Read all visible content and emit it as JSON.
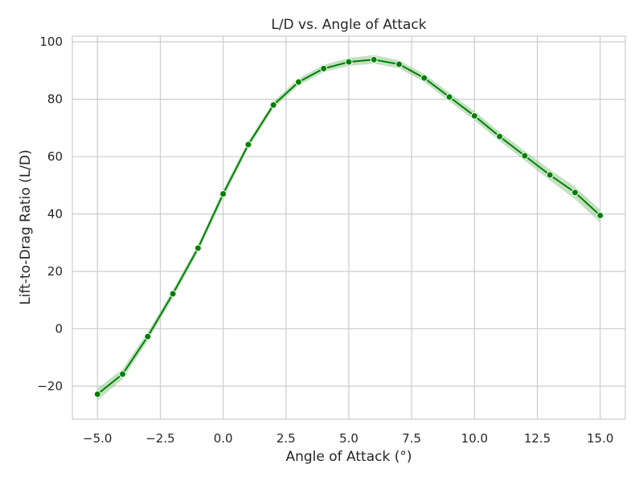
{
  "chart_data": {
    "type": "line",
    "title": "L/D vs. Angle of Attack",
    "xlabel": "Angle of Attack (°)",
    "ylabel": "Lift-to-Drag Ratio (L/D)",
    "xlim": [
      -6.0,
      16.0
    ],
    "ylim": [
      -31.5,
      102
    ],
    "xticks": [
      -5.0,
      -2.5,
      0.0,
      2.5,
      5.0,
      7.5,
      10.0,
      12.5,
      15.0
    ],
    "xtick_labels": [
      "−5.0",
      "−2.5",
      "0.0",
      "2.5",
      "5.0",
      "7.5",
      "10.0",
      "12.5",
      "15.0"
    ],
    "yticks": [
      -20,
      0,
      20,
      40,
      60,
      80,
      100
    ],
    "ytick_labels": [
      "−20",
      "0",
      "20",
      "40",
      "60",
      "80",
      "100"
    ],
    "grid": true,
    "series": [
      {
        "color": "#008000",
        "band_color": "#99cc99",
        "x": [
          -5,
          -4,
          -3,
          -2,
          -1,
          0,
          1,
          2,
          3,
          4,
          5,
          6,
          7,
          8,
          9,
          10,
          11,
          12,
          13,
          14,
          15
        ],
        "y": [
          -22.8,
          -15.8,
          -2.7,
          12.2,
          28.1,
          47.0,
          64.2,
          78.0,
          86.0,
          90.7,
          93.0,
          93.8,
          92.2,
          87.4,
          80.8,
          74.2,
          67.0,
          60.3,
          53.6,
          47.5,
          39.5
        ],
        "band_low": [
          -25.0,
          -17.5,
          -4.2,
          10.8,
          26.8,
          45.5,
          63.0,
          76.8,
          84.8,
          89.5,
          91.6,
          92.4,
          90.8,
          86.0,
          79.3,
          72.6,
          65.4,
          58.6,
          51.7,
          45.2,
          37.0
        ],
        "band_high": [
          -20.8,
          -14.0,
          -1.2,
          13.6,
          29.4,
          48.5,
          65.4,
          79.2,
          87.2,
          92.0,
          94.4,
          95.4,
          93.6,
          88.8,
          82.3,
          75.8,
          68.6,
          62.0,
          55.5,
          49.5,
          41.5
        ]
      }
    ]
  }
}
